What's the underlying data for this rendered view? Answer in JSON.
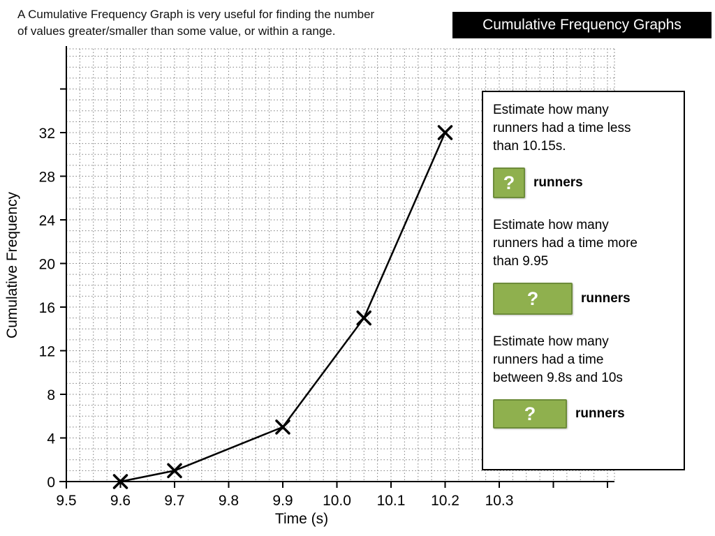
{
  "header": {
    "intro": "A Cumulative Frequency Graph is very useful for finding the number\nof values greater/smaller than some value, or within a range.",
    "title": "Cumulative Frequency Graphs"
  },
  "chart_data": {
    "type": "line",
    "x": [
      9.6,
      9.7,
      9.9,
      10.05,
      10.2
    ],
    "y": [
      0,
      1,
      5,
      15,
      32
    ],
    "marker": "x",
    "title": "",
    "xlabel": "Time (s)",
    "ylabel": "Cumulative Frequency",
    "x_ticks": [
      "9.5",
      "9.6",
      "9.7",
      "9.8",
      "9.9",
      "10.0",
      "10.1",
      "10.2",
      "10.3"
    ],
    "y_ticks": [
      0,
      4,
      8,
      12,
      16,
      20,
      24,
      28,
      32
    ],
    "xlim": [
      9.5,
      10.5
    ],
    "ylim": [
      0,
      39
    ],
    "grid": true,
    "grid_style": "dotted",
    "legend": "none"
  },
  "questions": [
    {
      "text": "Estimate how many\nrunners had a time less\nthan 10.15s.",
      "answer": "?",
      "unit": "runners",
      "box": "small"
    },
    {
      "text": "Estimate how many\nrunners had a time more\nthan 9.95",
      "answer": "?",
      "unit": "runners",
      "box": "wide"
    },
    {
      "text": "Estimate how many\nrunners had a time\nbetween 9.8s and 10s",
      "answer": "?",
      "unit": "runners",
      "box": "medium"
    }
  ],
  "colors": {
    "accent_green": "#8fb04e",
    "accent_green_border": "#6d8c3a",
    "banner_bg": "#000000",
    "panel_border": "#000000",
    "grid_gray": "#7d7d7d"
  }
}
